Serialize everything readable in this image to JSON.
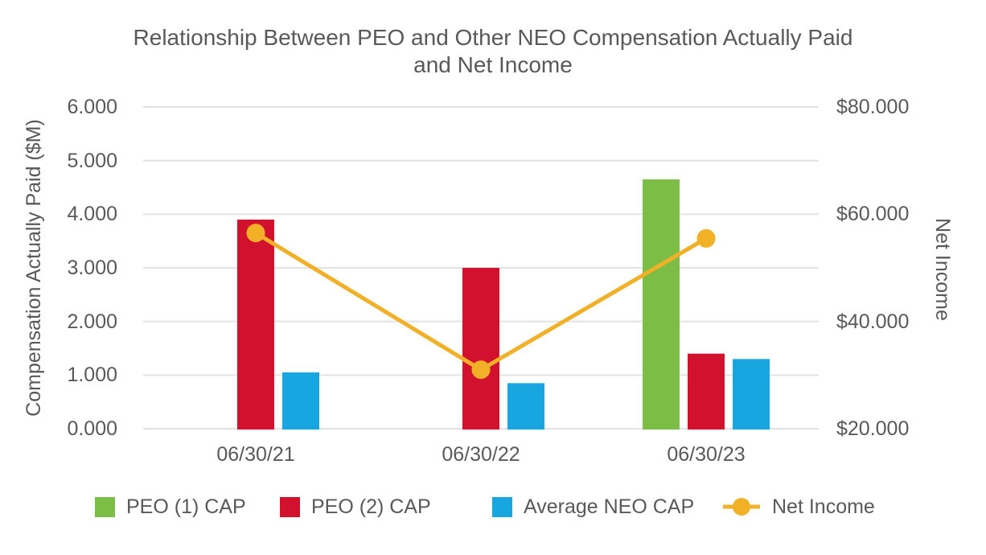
{
  "title_lines": [
    "Relationship Between PEO and Other NEO Compensation Actually Paid",
    "and Net Income"
  ],
  "colors": {
    "text": "#595959",
    "gridline": "#E3E3E3",
    "background": "#FFFFFF",
    "green": "#7CBE45",
    "red": "#D2112E",
    "blue": "#17A6DF",
    "amber": "#F2B026"
  },
  "chart_data": {
    "type": "combo",
    "categories": [
      "06/30/21",
      "06/30/22",
      "06/30/23"
    ],
    "series": [
      {
        "name": "PEO (1) CAP",
        "type": "bar",
        "axis": "left",
        "color": "#7CBE45",
        "values": [
          null,
          null,
          4.65
        ]
      },
      {
        "name": "PEO (2) CAP",
        "type": "bar",
        "axis": "left",
        "color": "#D2112E",
        "values": [
          3.9,
          3.0,
          1.4
        ]
      },
      {
        "name": "Average NEO CAP",
        "type": "bar",
        "axis": "left",
        "color": "#17A6DF",
        "values": [
          1.05,
          0.85,
          1.3
        ]
      },
      {
        "name": "Net Income",
        "type": "line",
        "axis": "right",
        "color": "#F2B026",
        "values": [
          56.5,
          31.0,
          55.5
        ]
      }
    ],
    "left_axis": {
      "title": "Compensation Actually Paid ($M)",
      "min": 0,
      "max": 6,
      "tick_step": 1,
      "tick_labels": [
        "0.000",
        "1.000",
        "2.000",
        "3.000",
        "4.000",
        "5.000",
        "6.000"
      ]
    },
    "right_axis": {
      "title": "Net Income",
      "min": 20,
      "max": 80,
      "tick_step": 20,
      "tick_labels": [
        "$20.000",
        "$40.000",
        "$60.000",
        "$80.000"
      ]
    },
    "grid": "horizontal light-gray gridlines",
    "legend_position": "bottom"
  }
}
